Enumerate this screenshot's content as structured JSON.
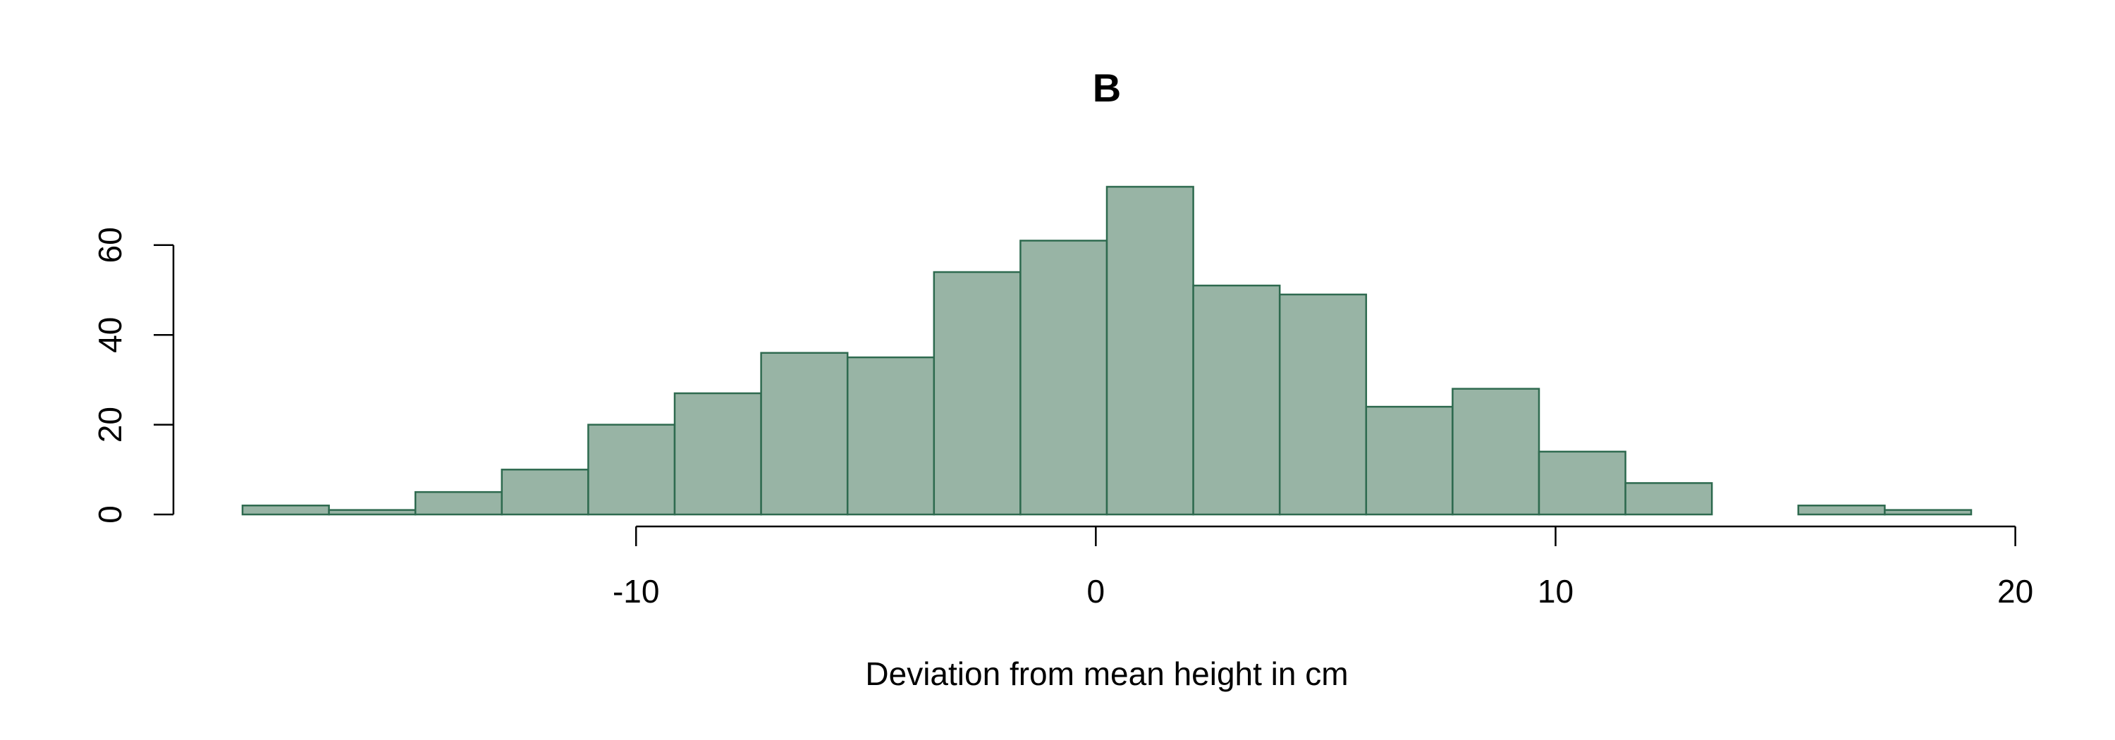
{
  "chart_data": {
    "type": "bar",
    "title": "B",
    "xlabel": "Deviation from mean height in cm",
    "ylabel": "",
    "bins": [
      {
        "x0": -18.56,
        "x1": -16.68,
        "count": 2
      },
      {
        "x0": -16.68,
        "x1": -14.8,
        "count": 1
      },
      {
        "x0": -14.8,
        "x1": -12.92,
        "count": 5
      },
      {
        "x0": -12.92,
        "x1": -11.04,
        "count": 10
      },
      {
        "x0": -11.04,
        "x1": -9.16,
        "count": 20
      },
      {
        "x0": -9.16,
        "x1": -7.28,
        "count": 27
      },
      {
        "x0": -7.28,
        "x1": -5.4,
        "count": 36
      },
      {
        "x0": -5.4,
        "x1": -3.52,
        "count": 35
      },
      {
        "x0": -3.52,
        "x1": -1.64,
        "count": 54
      },
      {
        "x0": -1.64,
        "x1": 0.24,
        "count": 61
      },
      {
        "x0": 0.24,
        "x1": 2.12,
        "count": 73
      },
      {
        "x0": 2.12,
        "x1": 4.0,
        "count": 51
      },
      {
        "x0": 4.0,
        "x1": 5.88,
        "count": 49
      },
      {
        "x0": 5.88,
        "x1": 7.76,
        "count": 24
      },
      {
        "x0": 7.76,
        "x1": 9.64,
        "count": 28
      },
      {
        "x0": 9.64,
        "x1": 11.52,
        "count": 14
      },
      {
        "x0": 11.52,
        "x1": 13.4,
        "count": 7
      },
      {
        "x0": 13.4,
        "x1": 15.28,
        "count": 0
      },
      {
        "x0": 15.28,
        "x1": 17.16,
        "count": 2
      },
      {
        "x0": 17.16,
        "x1": 19.04,
        "count": 1
      }
    ],
    "xlim": [
      -18.56,
      19.04
    ],
    "ylim": [
      0,
      73
    ],
    "x_ticks": [
      -10,
      0,
      10,
      20
    ],
    "x_tick_labels": [
      "-10",
      "0",
      "10",
      "20"
    ],
    "y_ticks": [
      0,
      20,
      40,
      60
    ],
    "y_tick_labels": [
      "0",
      "20",
      "40",
      "60"
    ],
    "grid": false,
    "legend": "none",
    "colors": {
      "bar_fill": "#98b4a5",
      "bar_stroke": "#2e6a4f",
      "axis": "#000000"
    }
  }
}
